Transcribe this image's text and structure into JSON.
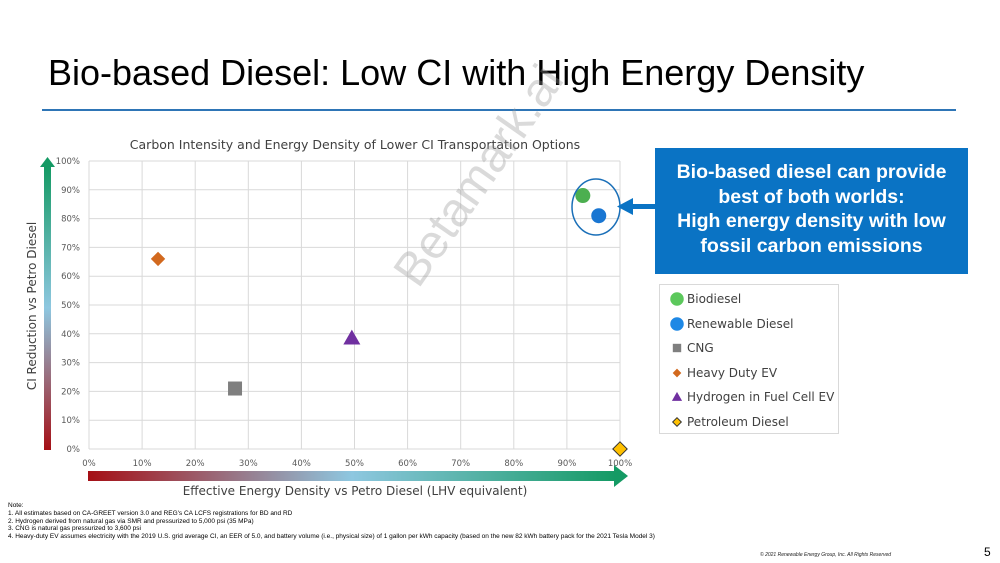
{
  "slide": {
    "title": "Bio-based Diesel: Low CI with High Energy Density",
    "page_number": "5",
    "copyright": "© 2021 Renewable Energy Group, Inc. All Rights Reserved",
    "watermark": "Betamark.ai"
  },
  "callout": {
    "lines": [
      "Bio-based diesel can provide",
      "best of both worlds:",
      "High energy density with low",
      "fossil carbon emissions"
    ],
    "color": "#0a73c4"
  },
  "notes": {
    "heading": "Note:",
    "lines": [
      "1. All estimates based on CA-GREET version 3.0 and REG's CA LCFS registrations for BD and RD",
      "2. Hydrogen derived from natural gas via SMR and pressurized to 5,000 psi (35 MPa)",
      "3. CNG is natural gas pressurized to 3,600 psi",
      "4. Heavy-duty EV assumes electricity with the 2019 U.S. grid average CI, an EER of 5.0, and battery volume (i.e., physical size) of 1 gallon per kWh capacity (based on the new 82 kWh battery pack for the 2021 Tesla Model 3)"
    ]
  },
  "chart_data": {
    "type": "scatter",
    "title": "Carbon Intensity and Energy Density of Lower CI Transportation Options",
    "xlabel": "Effective Energy Density vs Petro Diesel (LHV equivalent)",
    "ylabel": "CI Reduction vs Petro Diesel",
    "xlim": [
      0,
      100
    ],
    "ylim": [
      0,
      100
    ],
    "x_ticks": [
      0,
      10,
      20,
      30,
      40,
      50,
      60,
      70,
      80,
      90,
      100
    ],
    "y_ticks": [
      0,
      10,
      20,
      30,
      40,
      50,
      60,
      70,
      80,
      90,
      100
    ],
    "x_tick_labels": [
      "0%",
      "10%",
      "20%",
      "30%",
      "40%",
      "50%",
      "60%",
      "70%",
      "80%",
      "90%",
      "100%"
    ],
    "y_tick_labels": [
      "0%",
      "10%",
      "20%",
      "30%",
      "40%",
      "50%",
      "60%",
      "70%",
      "80%",
      "90%",
      "100%"
    ],
    "grid": true,
    "legend_position": "right",
    "series": [
      {
        "name": "Biodiesel",
        "x": 93,
        "y": 88,
        "marker": "circle",
        "color": "#4caf50",
        "legend_color": "#5cc85c"
      },
      {
        "name": "Renewable Diesel",
        "x": 96,
        "y": 81,
        "marker": "circle",
        "color": "#1976d2",
        "legend_color": "#1e88e5"
      },
      {
        "name": "CNG",
        "x": 27.5,
        "y": 21,
        "marker": "square",
        "color": "#7f7f7f",
        "legend_color": "#7f7f7f"
      },
      {
        "name": "Heavy Duty EV",
        "x": 13,
        "y": 66,
        "marker": "diamond",
        "color": "#d2691e",
        "legend_color": "#d2691e"
      },
      {
        "name": "Hydrogen in Fuel Cell EV",
        "x": 49.5,
        "y": 38.5,
        "marker": "triangle",
        "color": "#7030a0",
        "legend_color": "#7030a0"
      },
      {
        "name": "Petroleum Diesel",
        "x": 100,
        "y": 0,
        "marker": "diamond",
        "color": "#ffc000",
        "legend_color": "#ffc000"
      }
    ]
  }
}
